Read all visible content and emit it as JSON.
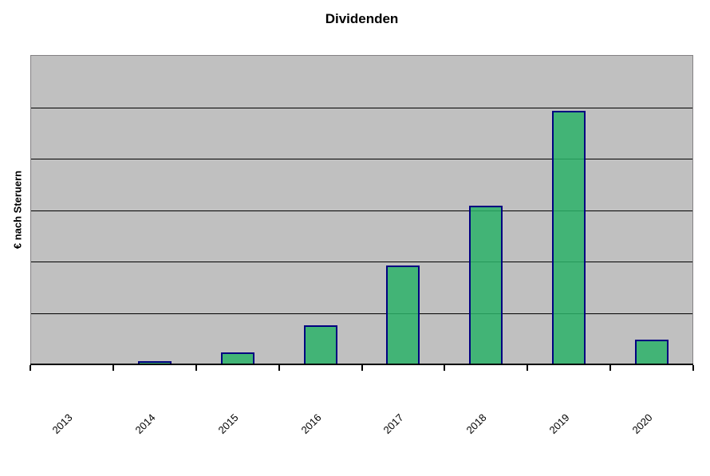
{
  "chart_data": {
    "type": "bar",
    "title": "Dividenden",
    "xlabel": "",
    "ylabel": "€ nach Steruern",
    "categories": [
      "2013",
      "2014",
      "2015",
      "2016",
      "2017",
      "2018",
      "2019",
      "2020"
    ],
    "values": [
      0,
      0.06,
      0.23,
      0.76,
      1.92,
      3.09,
      4.93,
      0.48
    ],
    "ylim": [
      0,
      6
    ],
    "y_divisions": 6,
    "y_tick_labels": [],
    "grid": "horizontal",
    "legend": "none",
    "colors": {
      "plot_background": "#C0C0C0",
      "plot_border": "#848284",
      "gridline": "#000000",
      "bar_fill": "#3CB371",
      "bar_border": "#000080",
      "axis_line": "#000000",
      "text": "#000000",
      "page_background": "#FFFFFF"
    }
  }
}
